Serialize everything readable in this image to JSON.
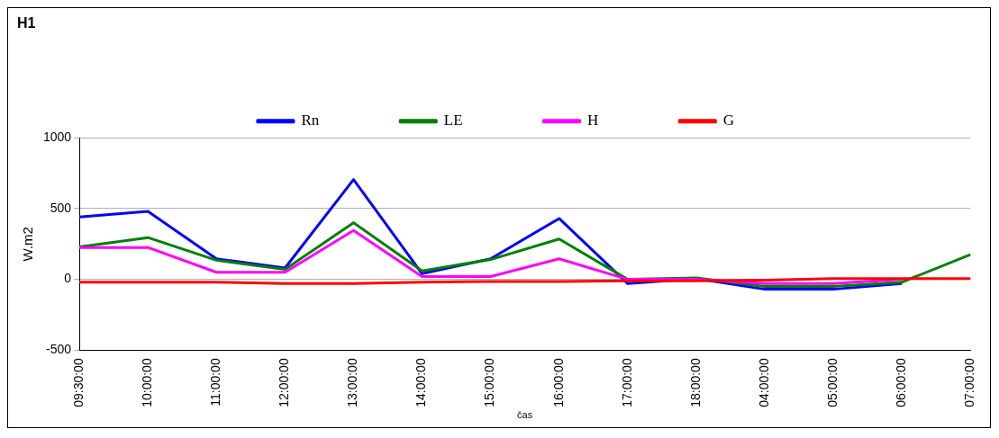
{
  "chart_data": {
    "type": "line",
    "title": "H1",
    "xlabel": "čas",
    "ylabel": "W.m2",
    "categories": [
      "09:30:00",
      "10:00:00",
      "11:00:00",
      "12:00:00",
      "13:00:00",
      "14:00:00",
      "15:00:00",
      "16:00:00",
      "17:00:00",
      "18:00:00",
      "04:00:00",
      "05:00:00",
      "06:00:00",
      "07:00:00"
    ],
    "series": [
      {
        "name": "Rn",
        "color": "#0000ff",
        "values": [
          440,
          480,
          145,
          80,
          705,
          40,
          145,
          430,
          -30,
          5,
          -70,
          -70,
          -30,
          null
        ]
      },
      {
        "name": "LE",
        "color": "#008000",
        "values": [
          230,
          295,
          135,
          70,
          400,
          60,
          140,
          285,
          0,
          10,
          -50,
          -50,
          -20,
          175
        ]
      },
      {
        "name": "H",
        "color": "#ff00ff",
        "values": [
          225,
          225,
          50,
          50,
          345,
          20,
          20,
          145,
          0,
          0,
          -30,
          -30,
          0,
          null
        ]
      },
      {
        "name": "G",
        "color": "#ff0000",
        "values": [
          -20,
          -20,
          -20,
          -30,
          -30,
          -20,
          -15,
          -15,
          -10,
          -10,
          -5,
          5,
          5,
          5
        ]
      }
    ],
    "ylim": [
      -500,
      1000
    ],
    "yticks": [
      -500,
      0,
      500,
      1000
    ],
    "grid": "y",
    "legend": "top",
    "marker": "none",
    "line_style": "solid"
  }
}
